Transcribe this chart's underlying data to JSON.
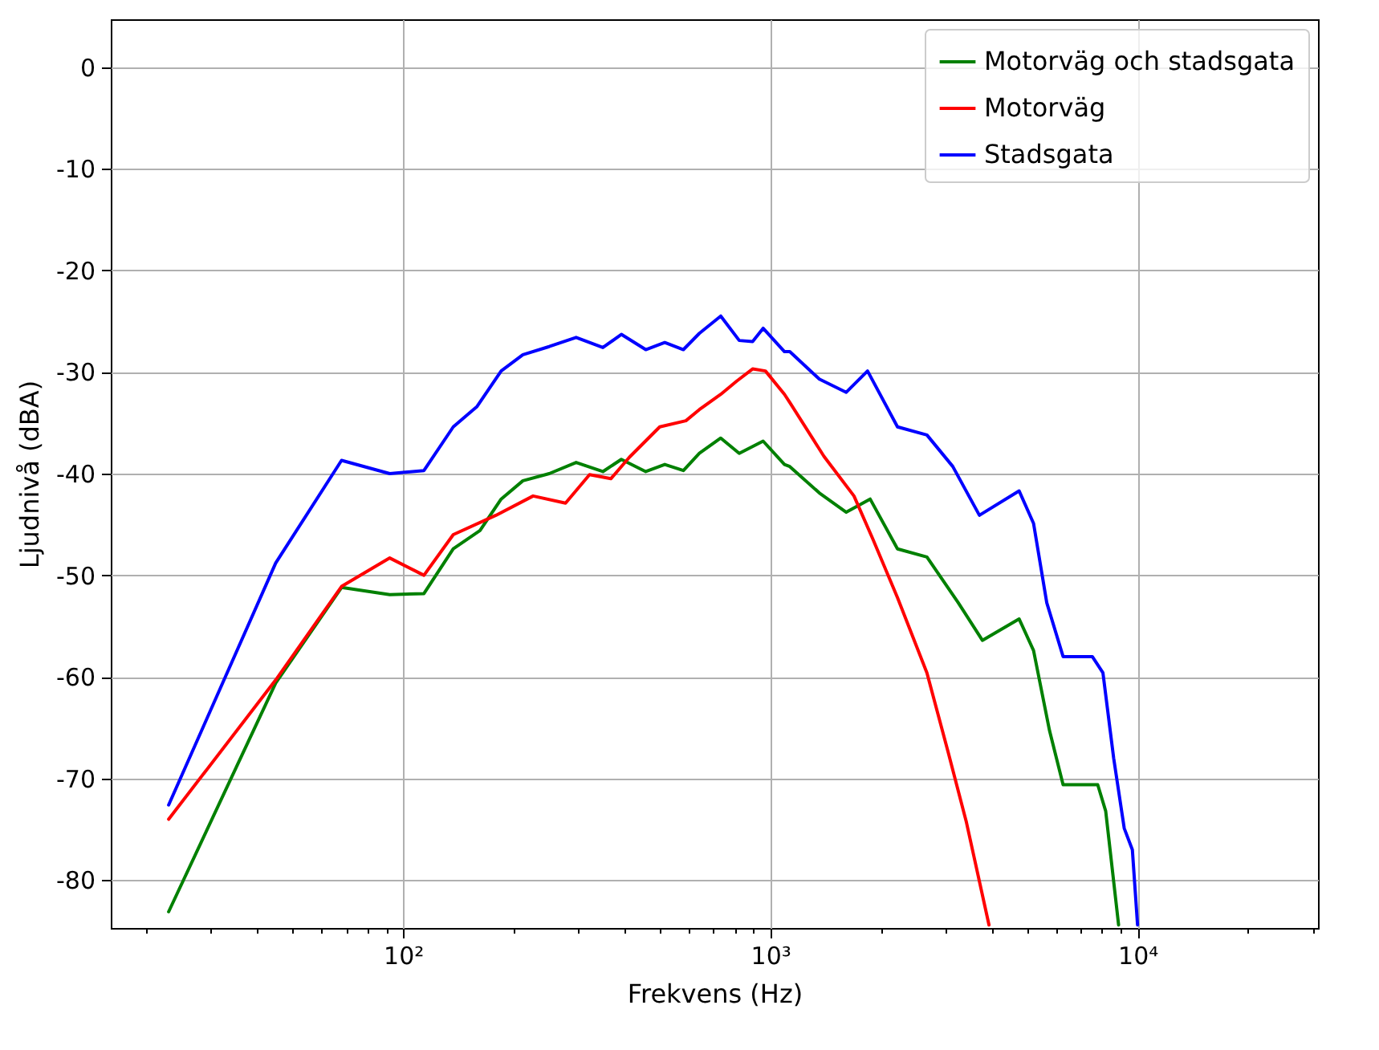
{
  "chart_data": {
    "type": "line",
    "xlabel": "Frekvens (Hz)",
    "ylabel": "Ljudnivå (dBA)",
    "log": "x",
    "grid": true,
    "legend": "top right",
    "line_style": "solid",
    "marker": "none",
    "xlim": [
      16,
      31000
    ],
    "ylim": [
      -84.7,
      4.7
    ],
    "xticks": [
      {
        "value": 20,
        "label": null
      },
      {
        "value": 30,
        "label": null
      },
      {
        "value": 40,
        "label": null
      },
      {
        "value": 50,
        "label": null
      },
      {
        "value": 60,
        "label": null
      },
      {
        "value": 70,
        "label": null
      },
      {
        "value": 80,
        "label": null
      },
      {
        "value": 90,
        "label": null
      },
      {
        "value": 100,
        "label": "10²"
      },
      {
        "value": 200,
        "label": null
      },
      {
        "value": 300,
        "label": null
      },
      {
        "value": 400,
        "label": null
      },
      {
        "value": 500,
        "label": null
      },
      {
        "value": 600,
        "label": null
      },
      {
        "value": 700,
        "label": null
      },
      {
        "value": 800,
        "label": null
      },
      {
        "value": 900,
        "label": null
      },
      {
        "value": 1000,
        "label": "10³"
      },
      {
        "value": 2000,
        "label": null
      },
      {
        "value": 3000,
        "label": null
      },
      {
        "value": 4000,
        "label": null
      },
      {
        "value": 5000,
        "label": null
      },
      {
        "value": 6000,
        "label": null
      },
      {
        "value": 7000,
        "label": null
      },
      {
        "value": 8000,
        "label": null
      },
      {
        "value": 9000,
        "label": null
      },
      {
        "value": 10000,
        "label": "10⁴"
      },
      {
        "value": 20000,
        "label": null
      },
      {
        "value": 30000,
        "label": null
      }
    ],
    "yticks": [
      -80,
      -70,
      -60,
      -50,
      -40,
      -30,
      -20,
      -10,
      0
    ],
    "series": [
      {
        "name": "Motorväg och stadsgata",
        "color": "#008000",
        "x": [
          23,
          45,
          68,
          92,
          114,
          137,
          162,
          185,
          212,
          250,
          296,
          350,
          393,
          458,
          516,
          580,
          641,
          733,
          823,
          956,
          1093,
          1130,
          1360,
          1610,
          1870,
          2220,
          2670,
          3250,
          3780,
          4760,
          5210,
          5760,
          6270,
          7790,
          8190,
          8880
        ],
        "values": [
          -83.1,
          -60.6,
          -51.2,
          -51.9,
          -51.8,
          -47.4,
          -45.6,
          -42.5,
          -40.7,
          -40,
          -38.9,
          -39.8,
          -38.6,
          -39.8,
          -39.1,
          -39.7,
          -38,
          -36.5,
          -38,
          -36.8,
          -39.1,
          -39.3,
          -41.9,
          -43.8,
          -42.5,
          -47.4,
          -48.2,
          -52.7,
          -56.4,
          -54.3,
          -57.4,
          -65.3,
          -70.6,
          -70.6,
          -73.2,
          -84.4
        ]
      },
      {
        "name": "Motorväg",
        "color": "#ff0000",
        "x": [
          23,
          45,
          68,
          92,
          114,
          137,
          179,
          226,
          277,
          322,
          368,
          413,
          500,
          589,
          641,
          733,
          810,
          895,
          970,
          1093,
          1130,
          1400,
          1690,
          1900,
          2220,
          2670,
          3050,
          3420,
          3940
        ],
        "values": [
          -74,
          -60.3,
          -51.1,
          -48.3,
          -50,
          -46,
          -44.1,
          -42.2,
          -42.9,
          -40.1,
          -40.5,
          -38.4,
          -35.4,
          -34.8,
          -33.7,
          -32.2,
          -30.9,
          -29.7,
          -29.9,
          -32.2,
          -33,
          -38.3,
          -42.2,
          -46.4,
          -52.2,
          -59.6,
          -67.4,
          -74.3,
          -84.4
        ]
      },
      {
        "name": "Stadsgata",
        "color": "#0000ff",
        "x": [
          23,
          45,
          68,
          92,
          114,
          137,
          159,
          185,
          212,
          250,
          296,
          350,
          393,
          458,
          516,
          580,
          641,
          733,
          823,
          895,
          956,
          1093,
          1130,
          1360,
          1610,
          1840,
          2220,
          2670,
          3140,
          3710,
          4760,
          5210,
          5660,
          6270,
          7530,
          8050,
          8610,
          9200,
          9680,
          10000
        ],
        "values": [
          -72.6,
          -48.8,
          -38.7,
          -40,
          -39.7,
          -35.4,
          -33.4,
          -29.9,
          -28.3,
          -27.5,
          -26.6,
          -27.6,
          -26.3,
          -27.8,
          -27.1,
          -27.8,
          -26.2,
          -24.5,
          -26.9,
          -27,
          -25.7,
          -28,
          -28,
          -30.7,
          -32,
          -29.9,
          -35.4,
          -36.2,
          -39.3,
          -44.1,
          -41.7,
          -44.9,
          -52.7,
          -58,
          -58,
          -59.6,
          -68,
          -74.9,
          -77,
          -84.4
        ]
      }
    ]
  }
}
